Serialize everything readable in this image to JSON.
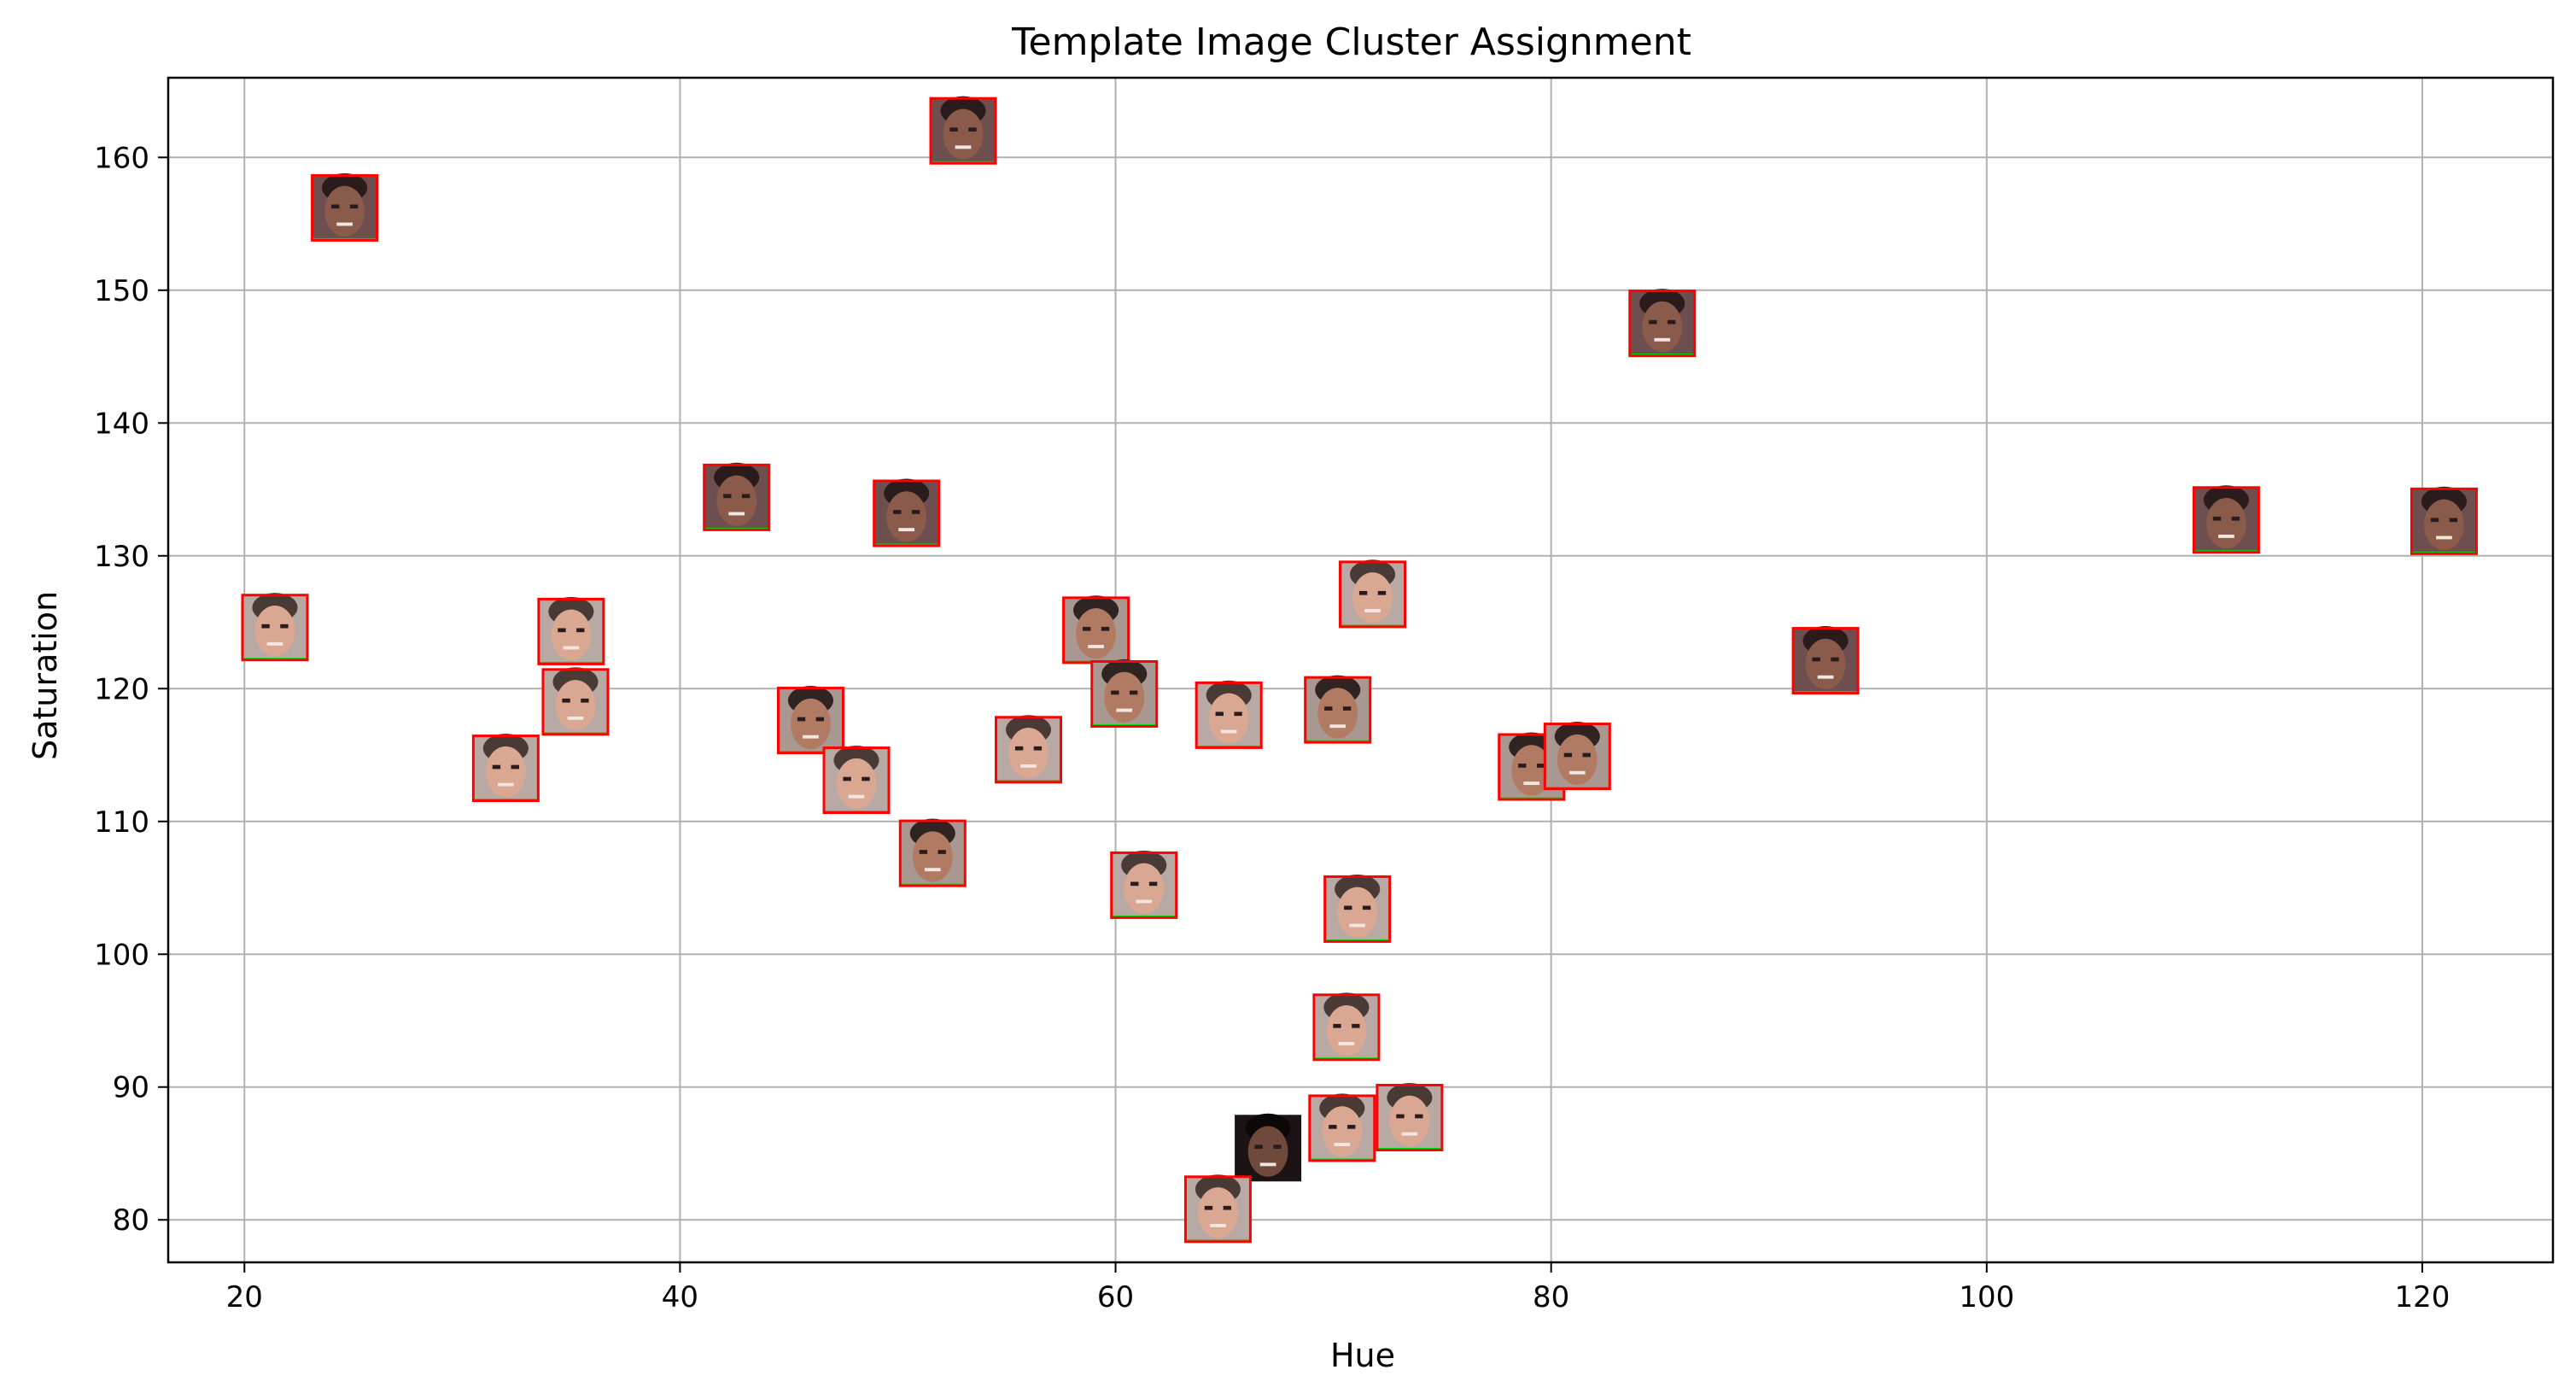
{
  "chart_data": {
    "type": "scatter",
    "title": "Template Image Cluster Assignment",
    "xlabel": "Hue",
    "ylabel": "Saturation",
    "xlim": [
      16.5,
      126
    ],
    "ylim": [
      76.8,
      166
    ],
    "xticks": [
      20,
      40,
      60,
      80,
      100,
      120
    ],
    "yticks": [
      80,
      90,
      100,
      110,
      120,
      130,
      140,
      150,
      160
    ],
    "grid": true,
    "marker": "face-thumbnail",
    "points": [
      {
        "x": 24.6,
        "y": 156.2,
        "variant": "dark"
      },
      {
        "x": 53.0,
        "y": 162.0,
        "variant": "dark"
      },
      {
        "x": 85.1,
        "y": 147.5,
        "variant": "dark"
      },
      {
        "x": 111.0,
        "y": 132.7,
        "variant": "dark"
      },
      {
        "x": 121.0,
        "y": 132.6,
        "variant": "dark"
      },
      {
        "x": 21.4,
        "y": 124.6,
        "variant": "light"
      },
      {
        "x": 42.6,
        "y": 134.4,
        "variant": "dark"
      },
      {
        "x": 50.4,
        "y": 133.2,
        "variant": "dark"
      },
      {
        "x": 35.0,
        "y": 124.3,
        "variant": "light"
      },
      {
        "x": 35.2,
        "y": 119.0,
        "variant": "light"
      },
      {
        "x": 32.0,
        "y": 114.0,
        "variant": "light"
      },
      {
        "x": 46.0,
        "y": 117.6,
        "variant": "medium"
      },
      {
        "x": 48.1,
        "y": 113.1,
        "variant": "light"
      },
      {
        "x": 51.6,
        "y": 107.6,
        "variant": "medium"
      },
      {
        "x": 56.0,
        "y": 115.4,
        "variant": "light"
      },
      {
        "x": 59.1,
        "y": 124.4,
        "variant": "medium"
      },
      {
        "x": 60.4,
        "y": 119.6,
        "variant": "medium"
      },
      {
        "x": 65.2,
        "y": 118.0,
        "variant": "light"
      },
      {
        "x": 71.8,
        "y": 127.1,
        "variant": "light"
      },
      {
        "x": 70.2,
        "y": 118.4,
        "variant": "medium"
      },
      {
        "x": 61.3,
        "y": 105.2,
        "variant": "light"
      },
      {
        "x": 71.1,
        "y": 103.4,
        "variant": "light"
      },
      {
        "x": 70.6,
        "y": 94.5,
        "variant": "light"
      },
      {
        "x": 70.4,
        "y": 86.9,
        "variant": "light"
      },
      {
        "x": 73.5,
        "y": 87.7,
        "variant": "light"
      },
      {
        "x": 67.0,
        "y": 85.4,
        "variant": "shadow"
      },
      {
        "x": 64.7,
        "y": 80.8,
        "variant": "light"
      },
      {
        "x": 79.1,
        "y": 114.1,
        "variant": "medium"
      },
      {
        "x": 81.2,
        "y": 114.9,
        "variant": "medium"
      },
      {
        "x": 92.6,
        "y": 122.1,
        "variant": "dark"
      }
    ]
  },
  "colors": {
    "frame": "#000000",
    "grid": "#b0b0b0",
    "thumbnail_border": "#ff0000",
    "thumbnail_accent": "#00e000"
  }
}
